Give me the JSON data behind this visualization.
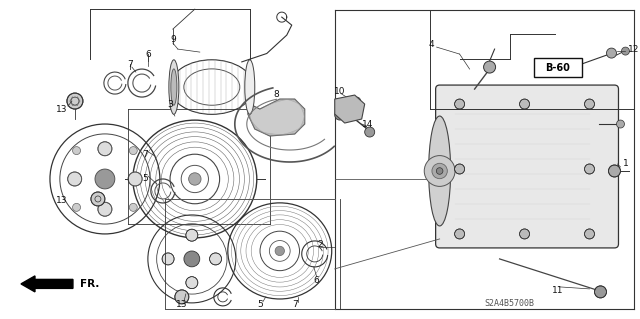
{
  "bg_color": "#ffffff",
  "fig_width": 6.4,
  "fig_height": 3.19,
  "dpi": 100,
  "diagram_code": "S2A4B5700B",
  "lc": "#333333",
  "tc": "#111111",
  "fs": 6.5
}
